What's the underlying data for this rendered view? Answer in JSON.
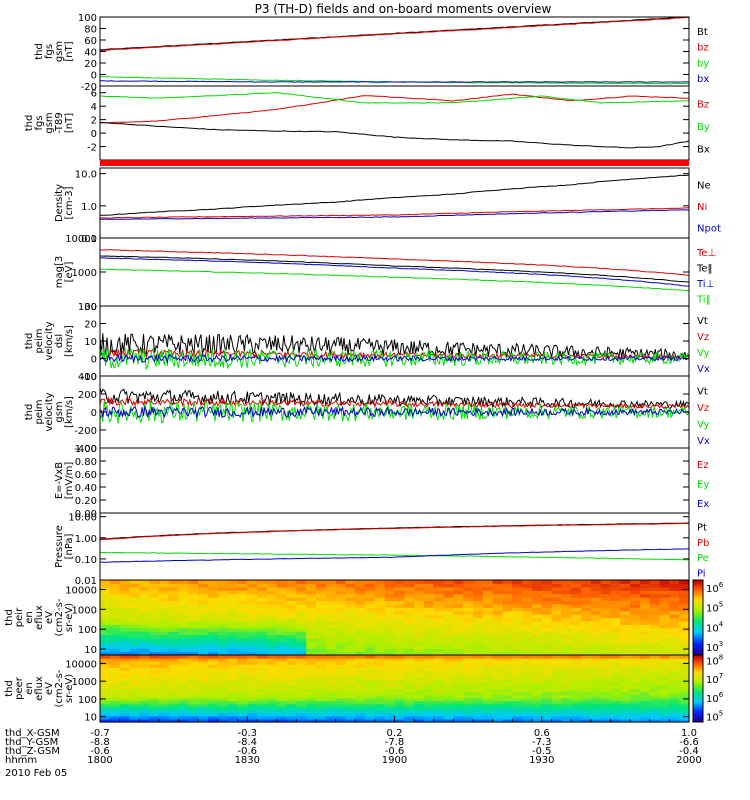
{
  "title": "P3 (TH-D) fields and on-board moments overview",
  "colors": {
    "black": "#000000",
    "red": "#dd0000",
    "green": "#00dd00",
    "blue": "#0000cc"
  },
  "chart_data": [
    {
      "type": "line",
      "id": "fgs",
      "ylabel": [
        "thd",
        "fgs",
        "gsm",
        "[nT]"
      ],
      "ylim": [
        -20,
        100
      ],
      "scale": "linear",
      "yticks": [
        {
          "v": -20,
          "t": "-20"
        },
        {
          "v": 0,
          "t": "0"
        },
        {
          "v": 20,
          "t": "20"
        },
        {
          "v": 40,
          "t": "40"
        },
        {
          "v": 60,
          "t": "60"
        },
        {
          "v": 80,
          "t": "80"
        },
        {
          "v": 100,
          "t": "100"
        }
      ],
      "series": [
        {
          "name": "Bt",
          "color": "black",
          "x": [
            0,
            1
          ],
          "y": [
            43,
            100
          ]
        },
        {
          "name": "bz",
          "color": "red",
          "x": [
            0,
            1
          ],
          "y": [
            42,
            99
          ]
        },
        {
          "name": "by",
          "color": "green",
          "x": [
            0,
            0.3,
            0.6,
            1
          ],
          "y": [
            -4,
            -10,
            -14,
            -16
          ]
        },
        {
          "name": "bx",
          "color": "blue",
          "x": [
            0,
            0.3,
            1
          ],
          "y": [
            -11,
            -13,
            -13
          ]
        }
      ]
    },
    {
      "type": "line",
      "id": "fgs_t89",
      "ylabel": [
        "thd",
        "fgs",
        "gsm",
        "-T89",
        "[nT]"
      ],
      "ylim": [
        -4,
        7
      ],
      "scale": "linear",
      "yticks": [
        {
          "v": -2,
          "t": "-2"
        },
        {
          "v": 0,
          "t": "0"
        },
        {
          "v": 2,
          "t": "2"
        },
        {
          "v": 4,
          "t": "4"
        },
        {
          "v": 6,
          "t": "6"
        }
      ],
      "series": [
        {
          "name": "Bz",
          "color": "red",
          "x": [
            0,
            0.1,
            0.3,
            0.45,
            0.6,
            0.7,
            0.8,
            0.9,
            1
          ],
          "y": [
            1.5,
            1.8,
            3.5,
            5.6,
            4.8,
            5.8,
            4.8,
            5.5,
            5.2
          ]
        },
        {
          "name": "By",
          "color": "green",
          "x": [
            0,
            0.1,
            0.3,
            0.45,
            0.6,
            0.75,
            0.85,
            1
          ],
          "y": [
            5.5,
            5.2,
            6,
            4.5,
            4.5,
            5.5,
            4.5,
            4.8
          ]
        },
        {
          "name": "Bx",
          "color": "black",
          "x": [
            0,
            0.1,
            0.2,
            0.3,
            0.4,
            0.5,
            0.6,
            0.7,
            0.8,
            0.9,
            0.95,
            1
          ],
          "y": [
            1.6,
            1.0,
            0.5,
            0.3,
            0.2,
            -0.6,
            -1.0,
            -1.2,
            -1.8,
            -2.2,
            -2.0,
            -1.2
          ]
        }
      ]
    },
    {
      "type": "line",
      "id": "density",
      "ylabel": [
        "Density",
        "[cm-3]"
      ],
      "ylim": [
        0.1,
        15
      ],
      "scale": "log",
      "yticks": [
        {
          "v": 0.1,
          "t": "0.1"
        },
        {
          "v": 1,
          "t": "1.0"
        },
        {
          "v": 10,
          "t": "10.0"
        }
      ],
      "series": [
        {
          "name": "Ne",
          "color": "black",
          "x": [
            0,
            0.2,
            0.4,
            0.6,
            0.8,
            1
          ],
          "y": [
            0.5,
            0.8,
            1.3,
            2.3,
            4.5,
            9
          ]
        },
        {
          "name": "Ni",
          "color": "red",
          "x": [
            0,
            0.5,
            1
          ],
          "y": [
            0.42,
            0.52,
            0.85
          ]
        },
        {
          "name": "Npot",
          "color": "blue",
          "x": [
            0,
            0.5,
            1
          ],
          "y": [
            0.38,
            0.45,
            0.75
          ]
        }
      ]
    },
    {
      "type": "line",
      "id": "temp",
      "ylabel": [
        "mag[3",
        "[eV]"
      ],
      "ylim": [
        100,
        10000
      ],
      "scale": "log",
      "yticks": [
        {
          "v": 100,
          "t": "100"
        },
        {
          "v": 1000,
          "t": "1000"
        },
        {
          "v": 10000,
          "t": "10000"
        }
      ],
      "series": [
        {
          "name": "Te⊥",
          "color": "red",
          "x": [
            0,
            0.5,
            1
          ],
          "y": [
            4500,
            2400,
            800
          ]
        },
        {
          "name": "Te‖",
          "color": "black",
          "x": [
            0,
            0.5,
            1
          ],
          "y": [
            3000,
            1500,
            500
          ]
        },
        {
          "name": "Ti⊥",
          "color": "blue",
          "x": [
            0,
            0.5,
            1
          ],
          "y": [
            2600,
            1300,
            380
          ]
        },
        {
          "name": "Ti‖",
          "color": "green",
          "x": [
            0,
            0.5,
            1
          ],
          "y": [
            1200,
            700,
            280
          ]
        }
      ]
    },
    {
      "type": "line",
      "id": "vel_dsl",
      "ylabel": [
        "thd",
        "peim",
        "velocity",
        "dsl",
        "[km/s]"
      ],
      "ylim": [
        -10,
        30
      ],
      "scale": "linear",
      "yticks": [
        {
          "v": -10,
          "t": "-10"
        },
        {
          "v": 0,
          "t": "0"
        },
        {
          "v": 10,
          "t": "10"
        },
        {
          "v": 20,
          "t": "20"
        },
        {
          "v": 30,
          "t": "30"
        }
      ],
      "series": [
        {
          "name": "Vt",
          "color": "black",
          "x": [
            0,
            0.3,
            1
          ],
          "y": [
            8,
            8,
            2
          ],
          "noise": 6
        },
        {
          "name": "Vz",
          "color": "red",
          "x": [
            0,
            1
          ],
          "y": [
            3,
            1
          ],
          "noise": 2
        },
        {
          "name": "Vy",
          "color": "green",
          "x": [
            0,
            1
          ],
          "y": [
            0,
            0
          ],
          "noise": 6
        },
        {
          "name": "Vx",
          "color": "blue",
          "x": [
            0,
            1
          ],
          "y": [
            0,
            0
          ],
          "noise": 2
        }
      ]
    },
    {
      "type": "line",
      "id": "vel_gsm",
      "ylabel": [
        "thd",
        "peim",
        "velocity",
        "gsm",
        "[km/s]"
      ],
      "ylim": [
        -400,
        400
      ],
      "scale": "linear",
      "yticks": [
        {
          "v": -400,
          "t": "-400"
        },
        {
          "v": -200,
          "t": "-200"
        },
        {
          "v": 0,
          "t": "0"
        },
        {
          "v": 200,
          "t": "200"
        },
        {
          "v": 400,
          "t": "400"
        }
      ],
      "series": [
        {
          "name": "Vt",
          "color": "black",
          "x": [
            0,
            0.3,
            1
          ],
          "y": [
            180,
            150,
            80
          ],
          "noise": 80
        },
        {
          "name": "Vz",
          "color": "red",
          "x": [
            0,
            1
          ],
          "y": [
            120,
            60
          ],
          "noise": 40
        },
        {
          "name": "Vy",
          "color": "green",
          "x": [
            0,
            1
          ],
          "y": [
            0,
            0
          ],
          "noise": 120
        },
        {
          "name": "Vx",
          "color": "blue",
          "x": [
            0,
            1
          ],
          "y": [
            0,
            0
          ],
          "noise": 60
        }
      ]
    },
    {
      "type": "line",
      "id": "efield",
      "ylabel": [
        "E=-VxB",
        "[mV/m]"
      ],
      "ylim": [
        0,
        1
      ],
      "scale": "linear",
      "yticks": [
        {
          "v": 0,
          "t": "0.00"
        },
        {
          "v": 0.2,
          "t": "0.20"
        },
        {
          "v": 0.4,
          "t": "0.40"
        },
        {
          "v": 0.6,
          "t": "0.60"
        },
        {
          "v": 0.8,
          "t": "0.80"
        },
        {
          "v": 1,
          "t": "1.00"
        }
      ],
      "series": [
        {
          "name": "Ez",
          "color": "red",
          "x": [],
          "y": []
        },
        {
          "name": "Ey",
          "color": "green",
          "x": [],
          "y": []
        },
        {
          "name": "Ex",
          "color": "blue",
          "x": [],
          "y": []
        }
      ]
    },
    {
      "type": "line",
      "id": "pressure",
      "ylabel": [
        "Pressure",
        "[nPa]"
      ],
      "ylim": [
        0.01,
        15
      ],
      "scale": "log",
      "yticks": [
        {
          "v": 0.01,
          "t": "0.01"
        },
        {
          "v": 0.1,
          "t": "0.10"
        },
        {
          "v": 1,
          "t": "1.00"
        },
        {
          "v": 10,
          "t": "10.00"
        }
      ],
      "series": [
        {
          "name": "Pt",
          "color": "black",
          "x": [
            0,
            1
          ],
          "y": [
            0.85,
            5
          ]
        },
        {
          "name": "Pb",
          "color": "red",
          "x": [
            0,
            1
          ],
          "y": [
            0.8,
            4.8
          ]
        },
        {
          "name": "Pe",
          "color": "green",
          "x": [
            0,
            0.5,
            1
          ],
          "y": [
            0.2,
            0.15,
            0.09
          ]
        },
        {
          "name": "Pi",
          "color": "blue",
          "x": [
            0,
            0.5,
            1
          ],
          "y": [
            0.07,
            0.12,
            0.3
          ]
        }
      ]
    },
    {
      "type": "heatmap",
      "id": "peir",
      "ylabel": [
        "thd",
        "peir",
        "en",
        "eflux",
        "eV",
        "(cm2-s-",
        "sr-eV)"
      ],
      "ylim": [
        5,
        30000
      ],
      "scale": "log",
      "yticks": [
        {
          "v": 10,
          "t": "10"
        },
        {
          "v": 100,
          "t": "100"
        },
        {
          "v": 1000,
          "t": "1000"
        },
        {
          "v": 10000,
          "t": "10000"
        }
      ],
      "colorbar": {
        "ticks": [
          {
            "e": 3,
            "t": "10"
          },
          {
            "e": 4,
            "t": "10"
          },
          {
            "e": 5,
            "t": "10"
          },
          {
            "e": 6,
            "t": "10"
          }
        ],
        "min": 2.6,
        "max": 6.4
      }
    },
    {
      "type": "heatmap",
      "id": "peer",
      "ylabel": [
        "thd",
        "peer",
        "en",
        "eflux",
        "eV",
        "(cm2-s-",
        "sr-eV)"
      ],
      "ylim": [
        5,
        30000
      ],
      "scale": "log",
      "yticks": [
        {
          "v": 10,
          "t": "10"
        },
        {
          "v": 100,
          "t": "100"
        },
        {
          "v": 1000,
          "t": "1000"
        },
        {
          "v": 10000,
          "t": "10000"
        }
      ],
      "colorbar": {
        "ticks": [
          {
            "e": 5,
            "t": "10"
          },
          {
            "e": 6,
            "t": "10"
          },
          {
            "e": 7,
            "t": "10"
          },
          {
            "e": 8,
            "t": "10"
          }
        ],
        "min": 4.7,
        "max": 8.3
      }
    }
  ],
  "xaxis": {
    "rows": [
      {
        "label": "thd_X-GSM",
        "values": [
          "-0.7",
          "-0.3",
          "0.2",
          "0.6",
          "1.0"
        ]
      },
      {
        "label": "thd_Y-GSM",
        "values": [
          "-8.8",
          "-8.4",
          "-7.8",
          "-7.3",
          "-6.6"
        ]
      },
      {
        "label": "thd_Z-GSM",
        "values": [
          "-0.6",
          "-0.6",
          "-0.6",
          "-0.5",
          "-0.4"
        ]
      },
      {
        "label": "hhmm",
        "values": [
          "1800",
          "1830",
          "1900",
          "1930",
          "2000"
        ]
      }
    ],
    "date": "2010 Feb 05"
  }
}
